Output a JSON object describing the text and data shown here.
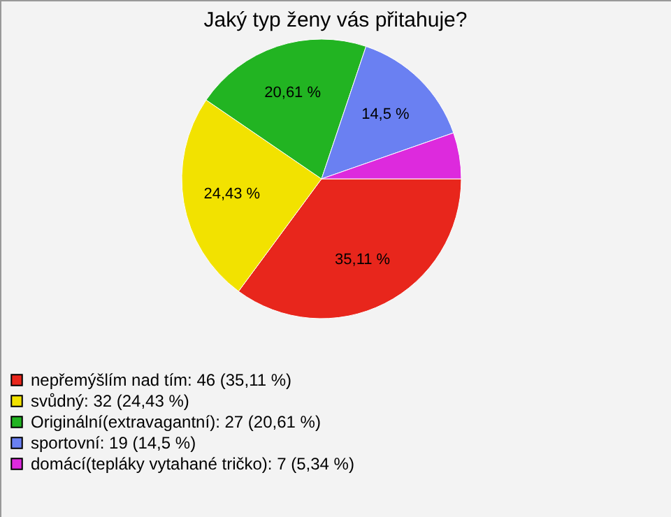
{
  "chart_data": {
    "type": "pie",
    "title": "Jaký typ ženy vás přitahuje?",
    "categories": [
      "nepřemýšlím nad tím: 46 (35,11 %)",
      "svůdný: 32 (24,43 %)",
      "Originální(extravagantní): 27 (20,61 %)",
      "sportovní: 19 (14,5 %)",
      "domácí(tepláky vytahané tričko): 7 (5,34 %)"
    ],
    "values": [
      35.11,
      24.43,
      20.61,
      14.5,
      5.34
    ],
    "value_labels": [
      "35,11 %",
      "24,43 %",
      "20,61 %",
      "14,5 %",
      null
    ],
    "colors": [
      "#e8261c",
      "#f2e200",
      "#22b422",
      "#6a80f2",
      "#dd2add"
    ],
    "legend": "bottom left"
  }
}
